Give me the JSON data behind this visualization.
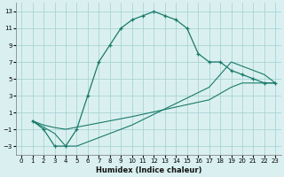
{
  "xlabel": "Humidex (Indice chaleur)",
  "bg_color": "#daf0f0",
  "grid_color": "#aad4d4",
  "line_color": "#1a7a6a",
  "xlim": [
    -0.5,
    23.5
  ],
  "ylim": [
    -4,
    14
  ],
  "xticks": [
    0,
    1,
    2,
    3,
    4,
    5,
    6,
    7,
    8,
    9,
    10,
    11,
    12,
    13,
    14,
    15,
    16,
    17,
    18,
    19,
    20,
    21,
    22,
    23
  ],
  "yticks": [
    -3,
    -1,
    1,
    3,
    5,
    7,
    9,
    11,
    13
  ],
  "line1_x": [
    1,
    2,
    3,
    4,
    5,
    6,
    7,
    8,
    9,
    10,
    11,
    12,
    13,
    14,
    15,
    16,
    17,
    18,
    19,
    20,
    21,
    22,
    23
  ],
  "line1_y": [
    0,
    -1,
    -3,
    -3,
    -1,
    3,
    7,
    9,
    11,
    12,
    12.5,
    13,
    12.5,
    12,
    11,
    8,
    7,
    7,
    6,
    5.5,
    5,
    4.5,
    4.5
  ],
  "line2_x": [
    1,
    2,
    3,
    4,
    10,
    17,
    19,
    20,
    22,
    23
  ],
  "line2_y": [
    0,
    -0.5,
    -0.8,
    -1,
    0.5,
    2.5,
    4,
    4.5,
    4.5,
    4.5
  ],
  "line3_x": [
    1,
    3,
    4,
    5,
    10,
    17,
    19,
    20,
    22,
    23
  ],
  "line3_y": [
    0,
    -1.5,
    -3,
    -3,
    -0.5,
    4,
    7,
    6.5,
    5.5,
    4.5
  ]
}
